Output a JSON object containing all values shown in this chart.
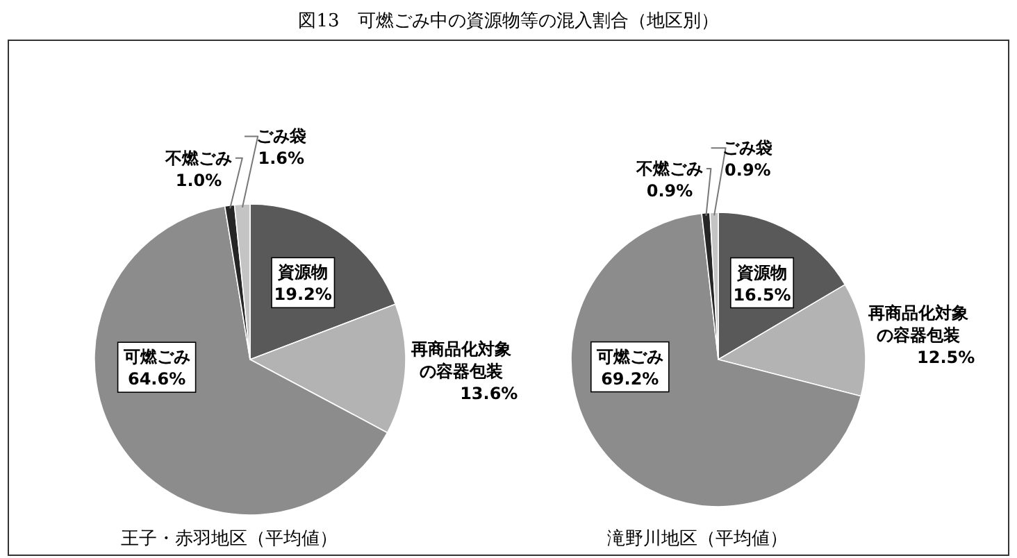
{
  "chart_data": [
    {
      "type": "pie",
      "title": "図13　可燃ごみ中の資源物等の混入割合（地区別）",
      "subtitle": "王子・赤羽地区（平均値）",
      "categories": [
        "資源物",
        "再商品化対象の容器包装",
        "可燃ごみ",
        "不燃ごみ",
        "ごみ袋"
      ],
      "values": [
        19.2,
        13.6,
        64.6,
        1.0,
        1.6
      ],
      "value_labels": [
        "19.2%",
        "13.6%",
        "64.6%",
        "1.0%",
        "1.6%"
      ],
      "colors": [
        "#595959",
        "#b3b3b3",
        "#8c8c8c",
        "#262626",
        "#c4c4c4"
      ]
    },
    {
      "type": "pie",
      "subtitle": "滝野川地区（平均値）",
      "categories": [
        "資源物",
        "再商品化対象の容器包装",
        "可燃ごみ",
        "不燃ごみ",
        "ごみ袋"
      ],
      "values": [
        16.5,
        12.5,
        69.2,
        0.9,
        0.9
      ],
      "value_labels": [
        "16.5%",
        "12.5%",
        "69.2%",
        "0.9%",
        "0.9%"
      ],
      "colors": [
        "#595959",
        "#b3b3b3",
        "#8c8c8c",
        "#262626",
        "#c4c4c4"
      ]
    }
  ]
}
